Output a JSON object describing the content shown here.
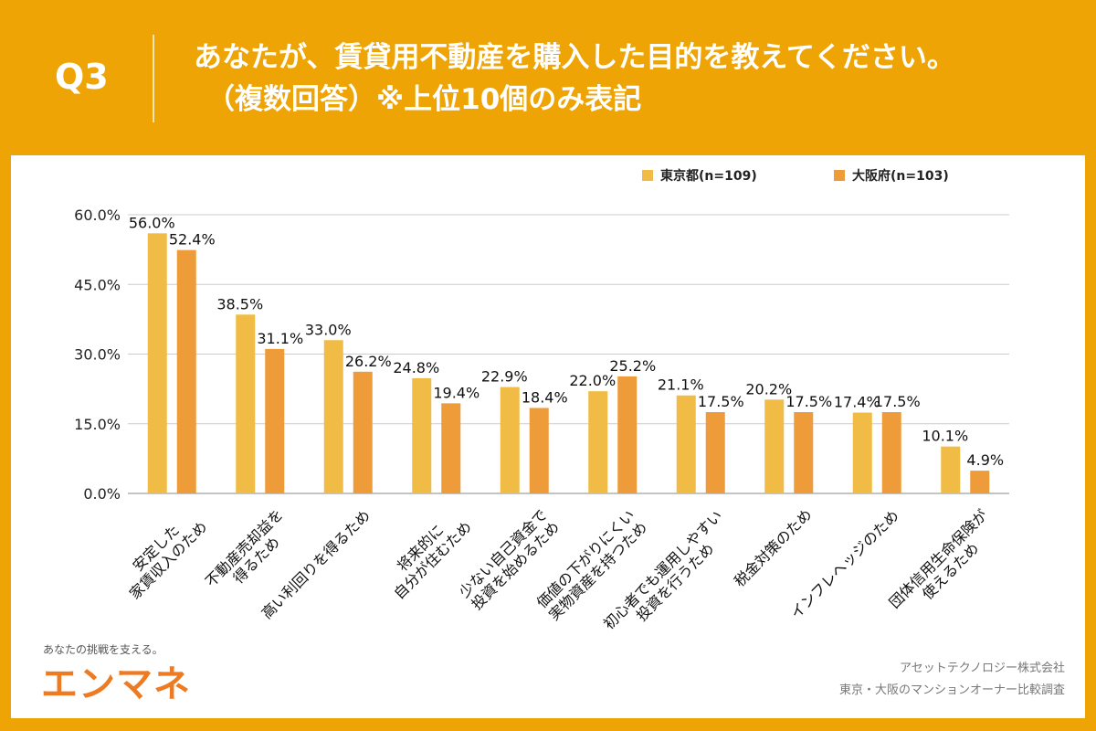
{
  "header": {
    "q_label": "Q3",
    "title_line1": "あなたが、賃貸用不動産を購入した目的を教えてください。",
    "title_line2": "（複数回答）※上位10個のみ表記"
  },
  "chart_data": {
    "type": "bar",
    "categories": [
      [
        "安定した",
        "家賃収入のため"
      ],
      [
        "不動産売却益を",
        "得るため"
      ],
      [
        "高い利回りを得るため"
      ],
      [
        "将来的に",
        "自分が住むため"
      ],
      [
        "少ない自己資金で",
        "投資を始めるため"
      ],
      [
        "価値の下がりにくい",
        "実物資産を持つため"
      ],
      [
        "初心者でも運用しやすい",
        "投資を行うため"
      ],
      [
        "税金対策のため"
      ],
      [
        "インフレヘッジのため"
      ],
      [
        "団体信用生命保険が",
        "使えるため"
      ]
    ],
    "series": [
      {
        "name": "東京都(n=109)",
        "color": "#F0BC45",
        "values": [
          56.0,
          38.5,
          33.0,
          24.8,
          22.9,
          22.0,
          21.1,
          20.2,
          17.4,
          10.1
        ]
      },
      {
        "name": "大阪府(n=103)",
        "color": "#EE9B3A",
        "values": [
          52.4,
          31.1,
          26.2,
          19.4,
          18.4,
          25.2,
          17.5,
          17.5,
          17.5,
          4.9
        ]
      }
    ],
    "yticks": [
      "0.0%",
      "15.0%",
      "30.0%",
      "45.0%",
      "60.0%"
    ],
    "ylim": [
      0,
      60
    ],
    "grid": true,
    "legend": "top-right"
  },
  "footer": {
    "logo_tagline": "あなたの挑戦を支える。",
    "logo_text": "エンマネ",
    "company": "アセットテクノロジー株式会社",
    "survey": "東京・大阪のマンションオーナー比較調査"
  }
}
